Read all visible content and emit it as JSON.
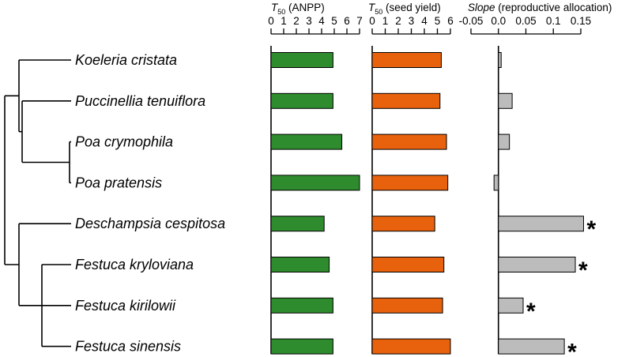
{
  "chart_data": {
    "type": "bar",
    "orientation": "horizontal",
    "species": [
      "Koeleria cristata",
      "Puccinellia tenuiflora",
      "Poa crymophila",
      "Poa pratensis",
      "Deschampsia cespitosa",
      "Festuca kryloviana",
      "Festuca kirilowii",
      "Festuca sinensis"
    ],
    "tree": "((Koeleria cristata,(Puccinellia tenuiflora,(Poa crymophila,Poa pratensis))),(Deschampsia cespitosa,(Festuca kryloviana,Festuca kirilowii,Festuca sinensis)))",
    "panels": [
      {
        "id": "anpp",
        "title_prefix": "T",
        "title_sub": "50",
        "title_rest": " (ANPP)",
        "xlim": [
          0,
          7
        ],
        "ticks": [
          0,
          1,
          2,
          3,
          4,
          5,
          6,
          7
        ],
        "tick_labels": [
          "0",
          "1",
          "2",
          "3",
          "4",
          "5",
          "6",
          "7"
        ],
        "color": "#2e8b2e",
        "values": [
          4.9,
          4.9,
          5.6,
          7.0,
          4.2,
          4.6,
          4.9,
          4.9
        ],
        "significant": [
          false,
          false,
          false,
          false,
          false,
          false,
          false,
          false
        ]
      },
      {
        "id": "seed",
        "title_prefix": "T",
        "title_sub": "50",
        "title_rest": " (seed yield)",
        "xlim": [
          0,
          6
        ],
        "ticks": [
          0,
          1,
          2,
          3,
          4,
          5,
          6
        ],
        "tick_labels": [
          "0",
          "1",
          "2",
          "3",
          "4",
          "5",
          "6"
        ],
        "color": "#e8610c",
        "values": [
          5.3,
          5.2,
          5.7,
          5.8,
          4.8,
          5.5,
          5.4,
          6.0
        ],
        "significant": [
          false,
          false,
          false,
          false,
          false,
          false,
          false,
          false
        ]
      },
      {
        "id": "slope",
        "title_italic": "Slope",
        "title_rest": " (reproductive allocation)",
        "xlim": [
          -0.05,
          0.15
        ],
        "ticks": [
          -0.05,
          0,
          0.05,
          0.1,
          0.15
        ],
        "tick_labels": [
          "-0.05",
          "0.0",
          "0.05",
          "0.1",
          "0.15"
        ],
        "color": "#bcbcbc",
        "values": [
          0.005,
          0.025,
          0.02,
          -0.008,
          0.155,
          0.14,
          0.045,
          0.12
        ],
        "significant": [
          false,
          false,
          false,
          false,
          true,
          true,
          true,
          true
        ]
      }
    ],
    "significance_marker": "*"
  }
}
